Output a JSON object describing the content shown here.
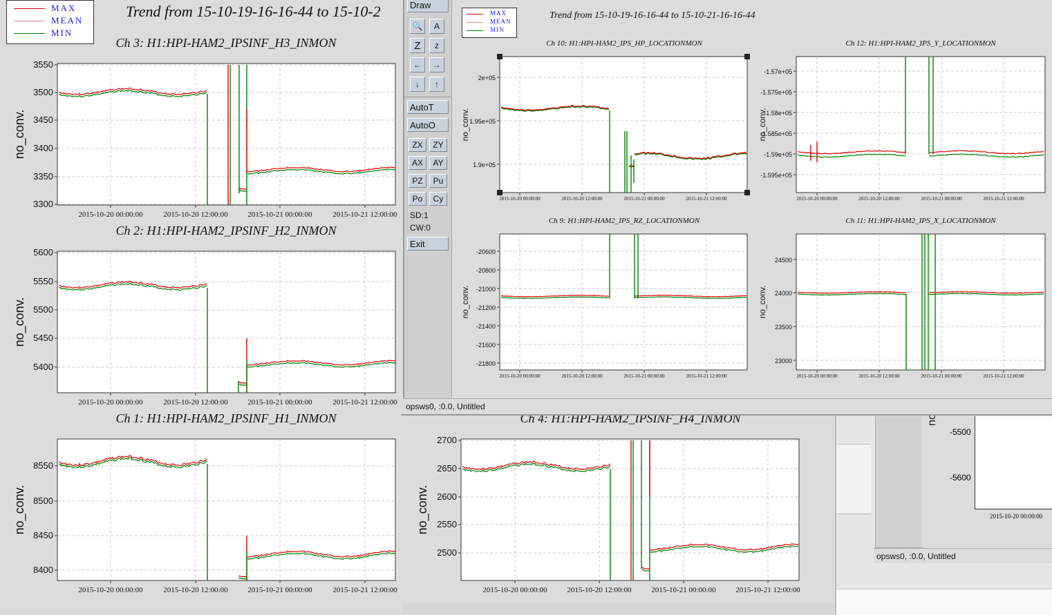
{
  "legend": {
    "max": "MAX",
    "mean": "MEAN",
    "min": "MIN"
  },
  "colors": {
    "max": "#e00000",
    "mean": "#e08080",
    "min": "#008000",
    "grid": "#c8c8c8",
    "legend_text": "#1a1ae0"
  },
  "left_window": {
    "title": "Trend from 15-10-19-16-16-44 to 15-10-2",
    "charts": [
      {
        "title": "Ch 3: H1:HPI-HAM2_IPSINF_H3_INMON",
        "ylabel": "no_conv.",
        "yticks": [
          "3550",
          "3500",
          "3450",
          "3400",
          "3350",
          "3300"
        ],
        "xticks": [
          "2015-10-20 00:00:00",
          "2015-10-20 12:00:00",
          "2015-10-21 00:00:00",
          "2015-10-21 12:00:00"
        ]
      },
      {
        "title": "Ch 2: H1:HPI-HAM2_IPSINF_H2_INMON",
        "ylabel": "no_conv.",
        "yticks": [
          "5600",
          "5550",
          "5500",
          "5450",
          "5400"
        ],
        "xticks": [
          "2015-10-20 00:00:00",
          "2015-10-20 12:00:00",
          "2015-10-21 00:00:00",
          "2015-10-21 12:00:00"
        ]
      },
      {
        "title": "Ch 1: H1:HPI-HAM2_IPSINF_H1_INMON",
        "ylabel": "no_conv.",
        "yticks": [
          "8550",
          "8500",
          "8450",
          "8400"
        ],
        "xticks": [
          "2015-10-20 00:00:00",
          "2015-10-20 12:00:00",
          "2015-10-21 00:00:00",
          "2015-10-21 12:00:00"
        ]
      },
      {
        "title": "Ch 4: H1:HPI-HAM2_IPSINF_H4_INMON",
        "ylabel": "no_conv.",
        "yticks": [
          "2700",
          "2650",
          "2600",
          "2550",
          "2500"
        ],
        "xticks": [
          "2015-10-20 00:00:00",
          "2015-10-20 12:00:00",
          "2015-10-21 00:00:00",
          "2015-10-21 12:00:00"
        ]
      }
    ]
  },
  "toolbar": {
    "draw": "Draw",
    "icons": [
      "magnify-icon",
      "text-scale-icon",
      "zoom-z-icon",
      "zoom-z-small-icon",
      "arrow-left-icon",
      "arrow-right-icon",
      "arrow-down-icon",
      "arrow-up-icon"
    ],
    "icon_labels": [
      "🔍",
      "A",
      "Z",
      "z",
      "←",
      "→",
      "↓",
      "↑"
    ],
    "autot": "AutoT",
    "autoo": "AutoO",
    "small": [
      "ZX",
      "ZY",
      "AX",
      "AY",
      "PZ",
      "Pu",
      "Po",
      "Cy"
    ],
    "sd": "SD:1",
    "cw": "CW:0",
    "exit": "Exit"
  },
  "right_window": {
    "title": "Trend from 15-10-19-16-16-44 to 15-10-21-16-16-44",
    "status": "opsws0, :0.0, Untitled",
    "charts": [
      {
        "title": "Ch 10: H1:HPI-HAM2_IPS_HP_LOCATIONMON",
        "ylabel": "no_conv.",
        "yticks": [
          "2e+05",
          "1.95e+05",
          "1.9e+05"
        ],
        "xticks": [
          "2015-10-20 00:00:00",
          "2015-10-20 12:00:00",
          "2015-10-21 00:00:00",
          "2015-10-21 12:00:00"
        ]
      },
      {
        "title": "Ch 12: H1:HPI-HAM2_IPS_Y_LOCATIONMON",
        "ylabel": "no_conv.",
        "yticks": [
          "-1.57e+05",
          "-1.575e+05",
          "-1.58e+05",
          "-1.585e+05",
          "-1.59e+05",
          "-1.595e+05"
        ],
        "xticks": [
          "2015-10-20 00:00:00",
          "2015-10-20 12:00:00",
          "2015-10-21 00:00:00",
          "2015-10-21 12:00:00"
        ]
      },
      {
        "title": "Ch 9: H1:HPI-HAM2_IPS_RZ_LOCATIONMON",
        "ylabel": "no_conv.",
        "yticks": [
          "-20600",
          "-20800",
          "-21000",
          "-21200",
          "-21400",
          "-21600",
          "-21800"
        ],
        "xticks": [
          "2015-10-20 00:00:00",
          "2015-10-20 12:00:00",
          "2015-10-21 00:00:00",
          "2015-10-21 12:00:00"
        ]
      },
      {
        "title": "Ch 11: H1:HPI-HAM2_IPS_X_LOCATIONMON",
        "ylabel": "no_conv.",
        "yticks": [
          "24500",
          "24000",
          "23500",
          "23000"
        ],
        "xticks": [
          "2015-10-20 00:00:00",
          "2015-10-20 12:00:00",
          "2015-10-21 00:00:00",
          "2015-10-21 12:00:00"
        ]
      }
    ]
  },
  "back_window": {
    "status": "opsws0, :0.0, Untitled",
    "ylabel": "no_",
    "yticks": [
      "-5500",
      "-5600"
    ],
    "xtick": "2015-10-20 00:00:00"
  }
}
